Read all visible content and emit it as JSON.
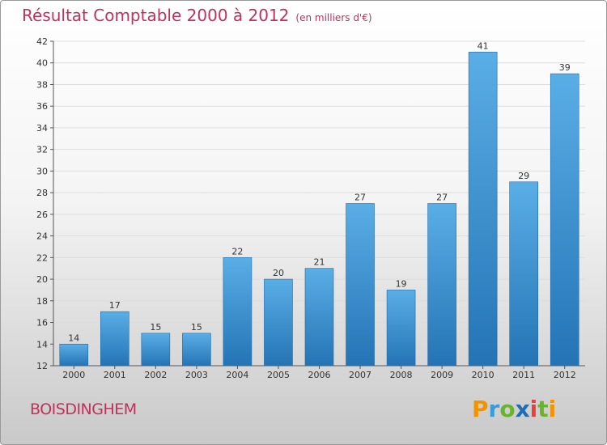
{
  "header": {
    "title": "Résultat Comptable 2000 à 2012",
    "subtitle": "(en milliers d'€)"
  },
  "footer": {
    "commune": "BOISDINGHEM",
    "brand": "Proxiti",
    "brand_letters": [
      {
        "ch": "P",
        "color": "#f29400"
      },
      {
        "ch": "r",
        "color": "#3c9ad6"
      },
      {
        "ch": "o",
        "color": "#6ab42d"
      },
      {
        "ch": "x",
        "color": "#1f6eb5"
      },
      {
        "ch": "i",
        "color": "#e8413c"
      },
      {
        "ch": "t",
        "color": "#6ab42d"
      },
      {
        "ch": "i",
        "color": "#f29400"
      }
    ]
  },
  "colors": {
    "bar_top": "#5aaee6",
    "bar_bottom": "#2474b5",
    "bar_edge": "#1e6aa8",
    "grid": "#dddddd",
    "title": "#c0315b"
  },
  "chart_data": {
    "type": "bar",
    "title": "Résultat Comptable 2000 à 2012",
    "subtitle": "(en milliers d'€)",
    "xlabel": "",
    "ylabel": "",
    "categories": [
      "2000",
      "2001",
      "2002",
      "2003",
      "2004",
      "2005",
      "2006",
      "2007",
      "2008",
      "2009",
      "2010",
      "2011",
      "2012"
    ],
    "values": [
      14,
      17,
      15,
      15,
      22,
      20,
      21,
      27,
      19,
      27,
      41,
      29,
      39
    ],
    "ylim": [
      12,
      42
    ],
    "yticks": [
      12,
      14,
      16,
      18,
      20,
      22,
      24,
      26,
      28,
      30,
      32,
      34,
      36,
      38,
      40,
      42
    ],
    "grid": true,
    "data_labels": true
  }
}
